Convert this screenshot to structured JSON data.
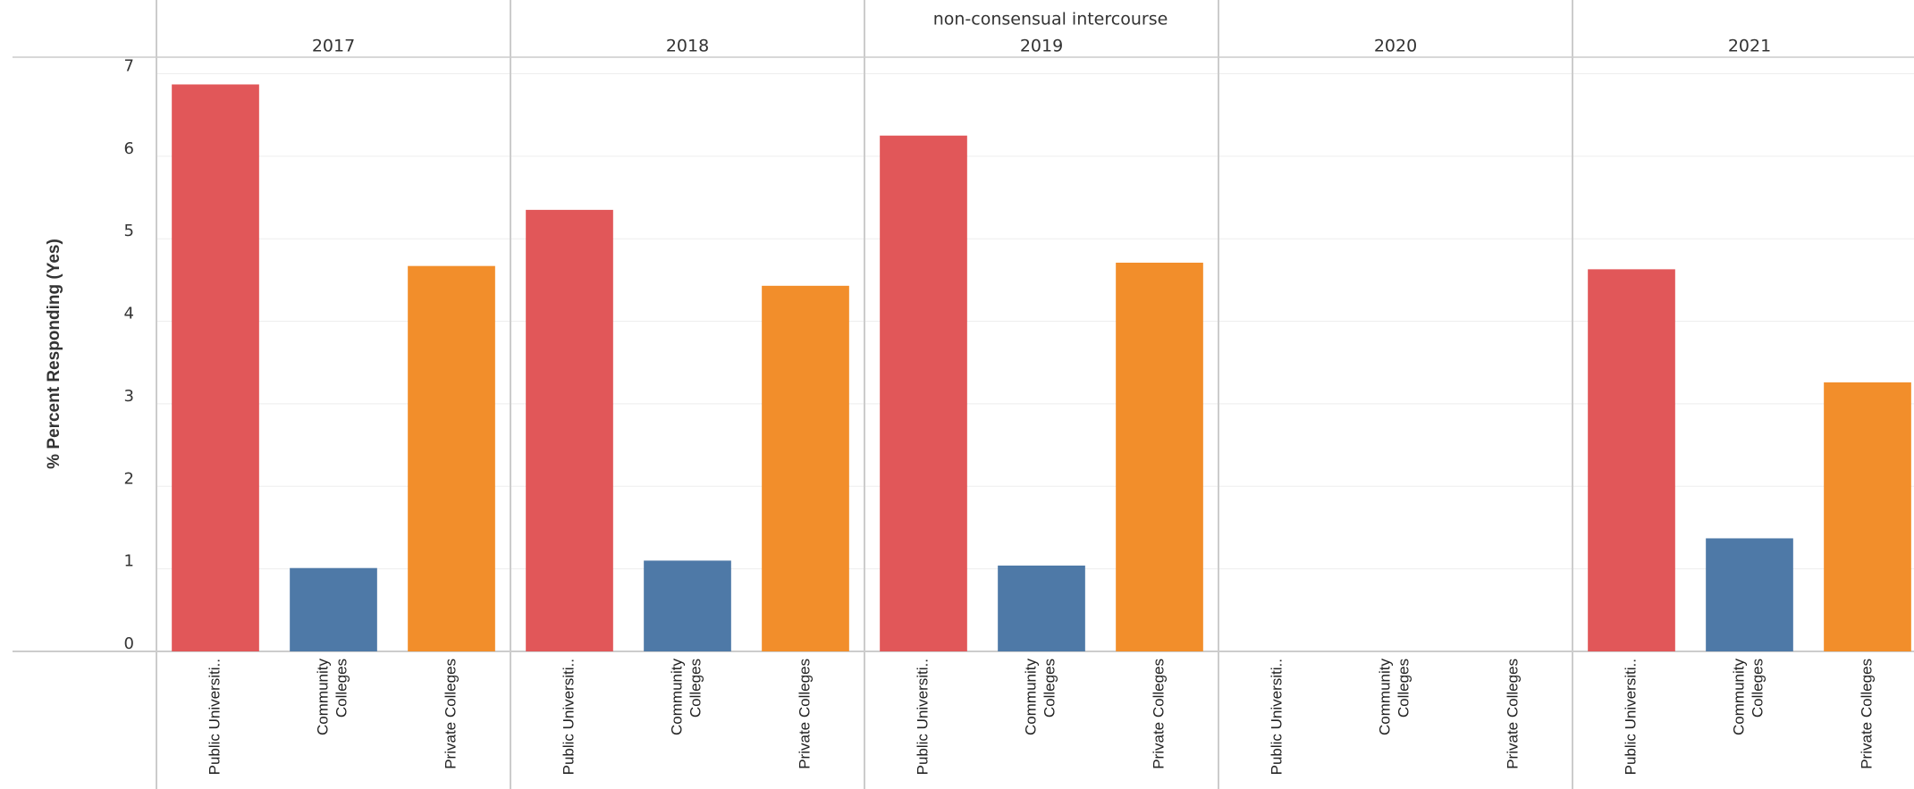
{
  "chart_data": {
    "type": "bar",
    "title": "non-consensual intercourse",
    "y_label": "% Percent Responding (Yes)",
    "categories": [
      "Public Universiti..",
      "Community Colleges",
      "Private Colleges"
    ],
    "colors": [
      "#e15759",
      "#4e79a7",
      "#f28e2b"
    ],
    "panels": [
      {
        "label": "2017",
        "values": [
          6.87,
          1.01,
          4.67
        ]
      },
      {
        "label": "2018",
        "values": [
          5.35,
          1.1,
          4.43
        ]
      },
      {
        "label": "2019",
        "values": [
          6.25,
          1.04,
          4.71
        ]
      },
      {
        "label": "2020",
        "values": [
          null,
          null,
          null
        ]
      },
      {
        "label": "2021",
        "values": [
          4.63,
          1.37,
          3.26
        ]
      }
    ],
    "ylim": [
      0,
      7.2
    ],
    "yticks": [
      0,
      1,
      2,
      3,
      4,
      5,
      6,
      7
    ],
    "grid": true
  }
}
